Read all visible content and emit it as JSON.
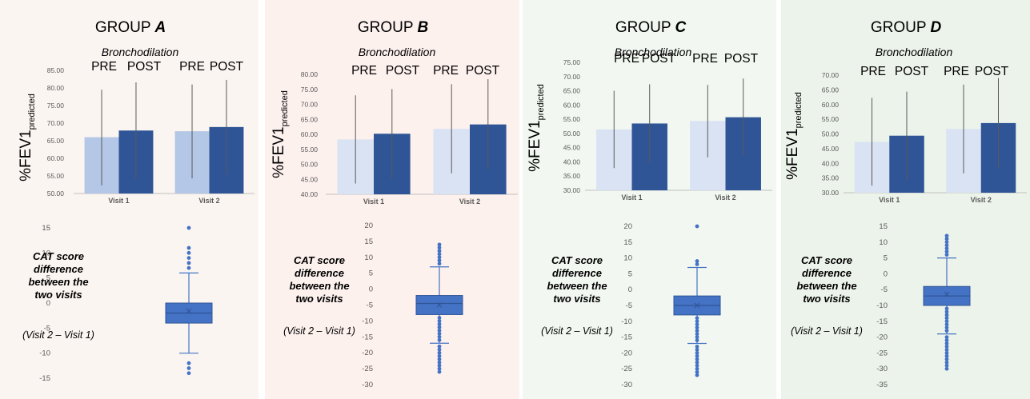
{
  "panel_backgrounds": [
    "#fbf5f1",
    "#fdf1ee",
    "#f2f8f1",
    "#ecf3ea"
  ],
  "colors": {
    "pre_bar": "#b4c7e7",
    "pre_bar_light": "#dae3f3",
    "post_bar": "#2f5597",
    "box": "#4472c4",
    "box_edge": "#2f5597",
    "error": "#595959",
    "axis": "#bfbfbf",
    "tick_text": "#595959"
  },
  "panels": [
    {
      "group_prefix": "GROUP ",
      "group_letter": "A",
      "bar_subtitle": "Bronchodilation",
      "pre_label": "PRE",
      "post_label": "POST",
      "ylabel_main": "%FEV1",
      "ylabel_sub": "predicted",
      "box_label_lines": [
        "CAT score",
        "difference",
        "between the",
        "two visits"
      ],
      "box_sublabel": "(Visit 2 – Visit 1)"
    },
    {
      "group_prefix": "GROUP ",
      "group_letter": "B",
      "bar_subtitle": "Bronchodilation",
      "pre_label": "PRE",
      "post_label": "POST",
      "ylabel_main": "%FEV1",
      "ylabel_sub": "predicted",
      "box_label_lines": [
        "CAT score",
        "difference",
        "between the",
        "two visits"
      ],
      "box_sublabel": "(Visit 2 – Visit 1)"
    },
    {
      "group_prefix": "GROUP ",
      "group_letter": "C",
      "bar_subtitle": "Bronchodilation",
      "pre_label": "PRE",
      "post_label": "POST",
      "ylabel_main": "%FEV1",
      "ylabel_sub": "predicted",
      "box_label_lines": [
        "CAT score",
        "difference",
        "between the",
        "two visits"
      ],
      "box_sublabel": "(Visit 2 – Visit 1)"
    },
    {
      "group_prefix": "GROUP ",
      "group_letter": "D",
      "bar_subtitle": "Bronchodilation",
      "pre_label": "PRE",
      "post_label": "POST",
      "ylabel_main": "%FEV1",
      "ylabel_sub": "predicted",
      "box_label_lines": [
        "CAT score",
        "difference",
        "between the",
        "two visits"
      ],
      "box_sublabel": "(Visit 2 – Visit 1)"
    }
  ],
  "chart_data": [
    {
      "type": "bar",
      "group": "A",
      "categories": [
        "Visit 1",
        "Visit 2"
      ],
      "series": [
        {
          "name": "PRE",
          "values": [
            66.0,
            67.7
          ],
          "error_low": [
            52.3,
            54.3
          ],
          "error_high": [
            79.5,
            81.0
          ]
        },
        {
          "name": "POST",
          "values": [
            67.9,
            68.9
          ],
          "error_low": [
            54.2,
            55.3
          ],
          "error_high": [
            81.6,
            82.3
          ]
        }
      ],
      "ylim": [
        50,
        85
      ],
      "ytick_step": 5,
      "ytick_decimals": 2
    },
    {
      "type": "box",
      "group": "A",
      "ylim": [
        -15,
        15
      ],
      "ytick_step": 5,
      "whisker_low": -10,
      "q1": -4,
      "median": -2,
      "mean": -1.6,
      "q3": 0,
      "whisker_high": 6,
      "outliers": [
        -14,
        -13,
        -12,
        7,
        8,
        9,
        10,
        11,
        15
      ]
    },
    {
      "type": "bar",
      "group": "B",
      "categories": [
        "Visit 1",
        "Visit 2"
      ],
      "series": [
        {
          "name": "PRE",
          "values": [
            58.3,
            61.8
          ],
          "error_low": [
            43.6,
            47.0
          ],
          "error_high": [
            73.0,
            76.7
          ]
        },
        {
          "name": "POST",
          "values": [
            60.2,
            63.3
          ],
          "error_low": [
            45.3,
            48.3
          ],
          "error_high": [
            75.1,
            78.4
          ]
        }
      ],
      "ylim": [
        40,
        80
      ],
      "ytick_step": 5,
      "ytick_decimals": 2
    },
    {
      "type": "box",
      "group": "B",
      "ylim": [
        -30,
        20
      ],
      "ytick_step": 5,
      "whisker_low": -17,
      "q1": -8,
      "median": -4.5,
      "mean": -5,
      "q3": -2,
      "whisker_high": 7,
      "outliers": [
        -26,
        -25,
        -24,
        -23,
        -22,
        -21,
        -20,
        -19,
        -18,
        -16,
        -15,
        -14,
        -13,
        -12,
        -11,
        -10,
        -9,
        8,
        9,
        10,
        11,
        12,
        13,
        14
      ]
    },
    {
      "type": "bar",
      "group": "C",
      "categories": [
        "Visit 1",
        "Visit 2"
      ],
      "series": [
        {
          "name": "PRE",
          "values": [
            51.4,
            54.4
          ],
          "error_low": [
            37.8,
            41.6
          ],
          "error_high": [
            65.0,
            67.1
          ]
        },
        {
          "name": "POST",
          "values": [
            53.5,
            55.7
          ],
          "error_low": [
            39.6,
            42.1
          ],
          "error_high": [
            67.3,
            69.3
          ]
        }
      ],
      "ylim": [
        30,
        75
      ],
      "ytick_step": 5,
      "ytick_decimals": 2
    },
    {
      "type": "box",
      "group": "C",
      "ylim": [
        -30,
        20
      ],
      "ytick_step": 5,
      "whisker_low": -17,
      "q1": -8,
      "median": -5,
      "mean": -5,
      "q3": -2,
      "whisker_high": 7,
      "outliers": [
        -27,
        -26,
        -25,
        -24,
        -23,
        -22,
        -21,
        -20,
        -19,
        -18,
        -16,
        -15,
        -14,
        -13,
        -12,
        -11,
        -10,
        -9,
        8,
        9,
        20
      ]
    },
    {
      "type": "bar",
      "group": "D",
      "categories": [
        "Visit 1",
        "Visit 2"
      ],
      "series": [
        {
          "name": "PRE",
          "values": [
            47.3,
            51.7
          ],
          "error_low": [
            32.4,
            36.6
          ],
          "error_high": [
            62.3,
            66.8
          ]
        },
        {
          "name": "POST",
          "values": [
            49.4,
            53.7
          ],
          "error_low": [
            34.2,
            38.6
          ],
          "error_high": [
            64.4,
            69.0
          ]
        }
      ],
      "ylim": [
        30,
        70
      ],
      "ytick_step": 5,
      "ytick_decimals": 2
    },
    {
      "type": "box",
      "group": "D",
      "ylim": [
        -35,
        15
      ],
      "ytick_step": 5,
      "whisker_low": -19,
      "q1": -10,
      "median": -7,
      "mean": -6.5,
      "q3": -4,
      "whisker_high": 5,
      "outliers": [
        -30,
        -29,
        -28,
        -27,
        -26,
        -25,
        -24,
        -23,
        -22,
        -21,
        -20,
        -18,
        -17,
        -16,
        -15,
        -14,
        -13,
        -12,
        -11,
        6,
        7,
        8,
        9,
        10,
        11,
        12
      ]
    }
  ]
}
